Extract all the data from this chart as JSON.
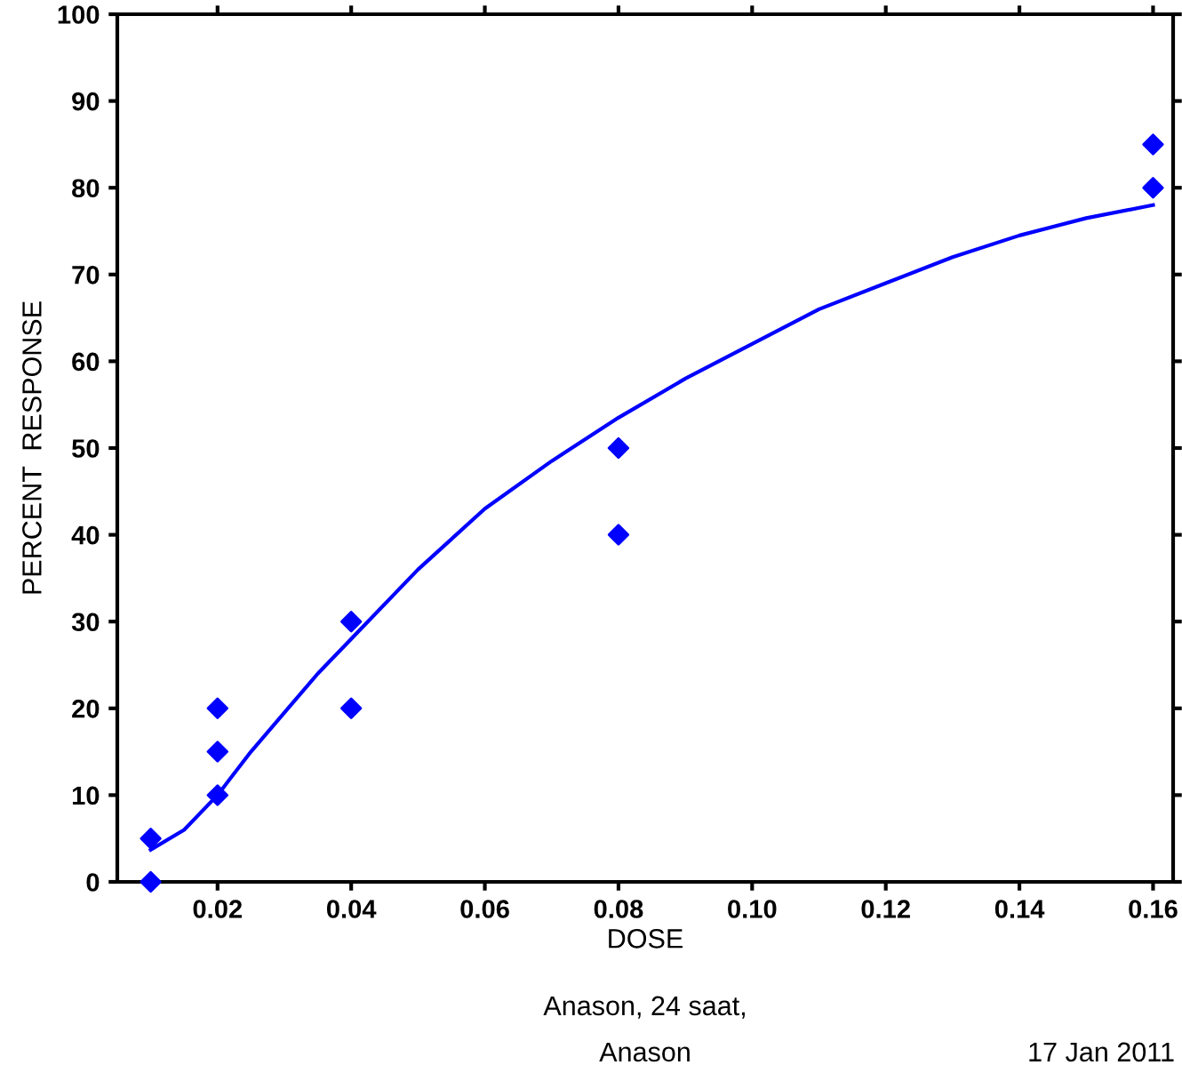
{
  "chart_data": {
    "type": "scatter",
    "xlabel": "DOSE",
    "ylabel": "PERCENT  RESPONSE",
    "xlim": [
      0.005,
      0.163
    ],
    "xticks": [
      0.02,
      0.04,
      0.06,
      0.08,
      {
        "value": 0.1,
        "label": "0.10"
      },
      0.12,
      0.14,
      0.16
    ],
    "ylim": [
      0,
      100
    ],
    "yticks": [
      0,
      10,
      20,
      30,
      40,
      50,
      60,
      70,
      80,
      90,
      100
    ],
    "grid": false,
    "legend": false,
    "marker": "diamond",
    "series": [
      {
        "color": "#0000ff",
        "x": [
          0.01,
          0.01,
          0.02,
          0.02,
          0.02,
          0.04,
          0.04,
          0.08,
          0.08,
          0.16,
          0.16
        ],
        "values": [
          5,
          0,
          20,
          15,
          10,
          30,
          20,
          50,
          40,
          85,
          80
        ]
      },
      {
        "type": "line",
        "color": "#0000ff",
        "marker": "none",
        "line_style": "solid",
        "x": [
          0.01,
          0.015,
          0.02,
          0.025,
          0.03,
          0.035,
          0.04,
          0.05,
          0.06,
          0.07,
          0.08,
          0.09,
          0.1,
          0.11,
          0.12,
          0.13,
          0.14,
          0.15,
          0.16
        ],
        "values": [
          3.7,
          6,
          10,
          15,
          19.5,
          24,
          28,
          36,
          43,
          48.5,
          53.5,
          58,
          62,
          66,
          69,
          72,
          74.5,
          76.5,
          78
        ]
      }
    ],
    "annotations": [
      "Anason, 24 saat,",
      "Anason",
      "17 Jan 2011"
    ]
  }
}
